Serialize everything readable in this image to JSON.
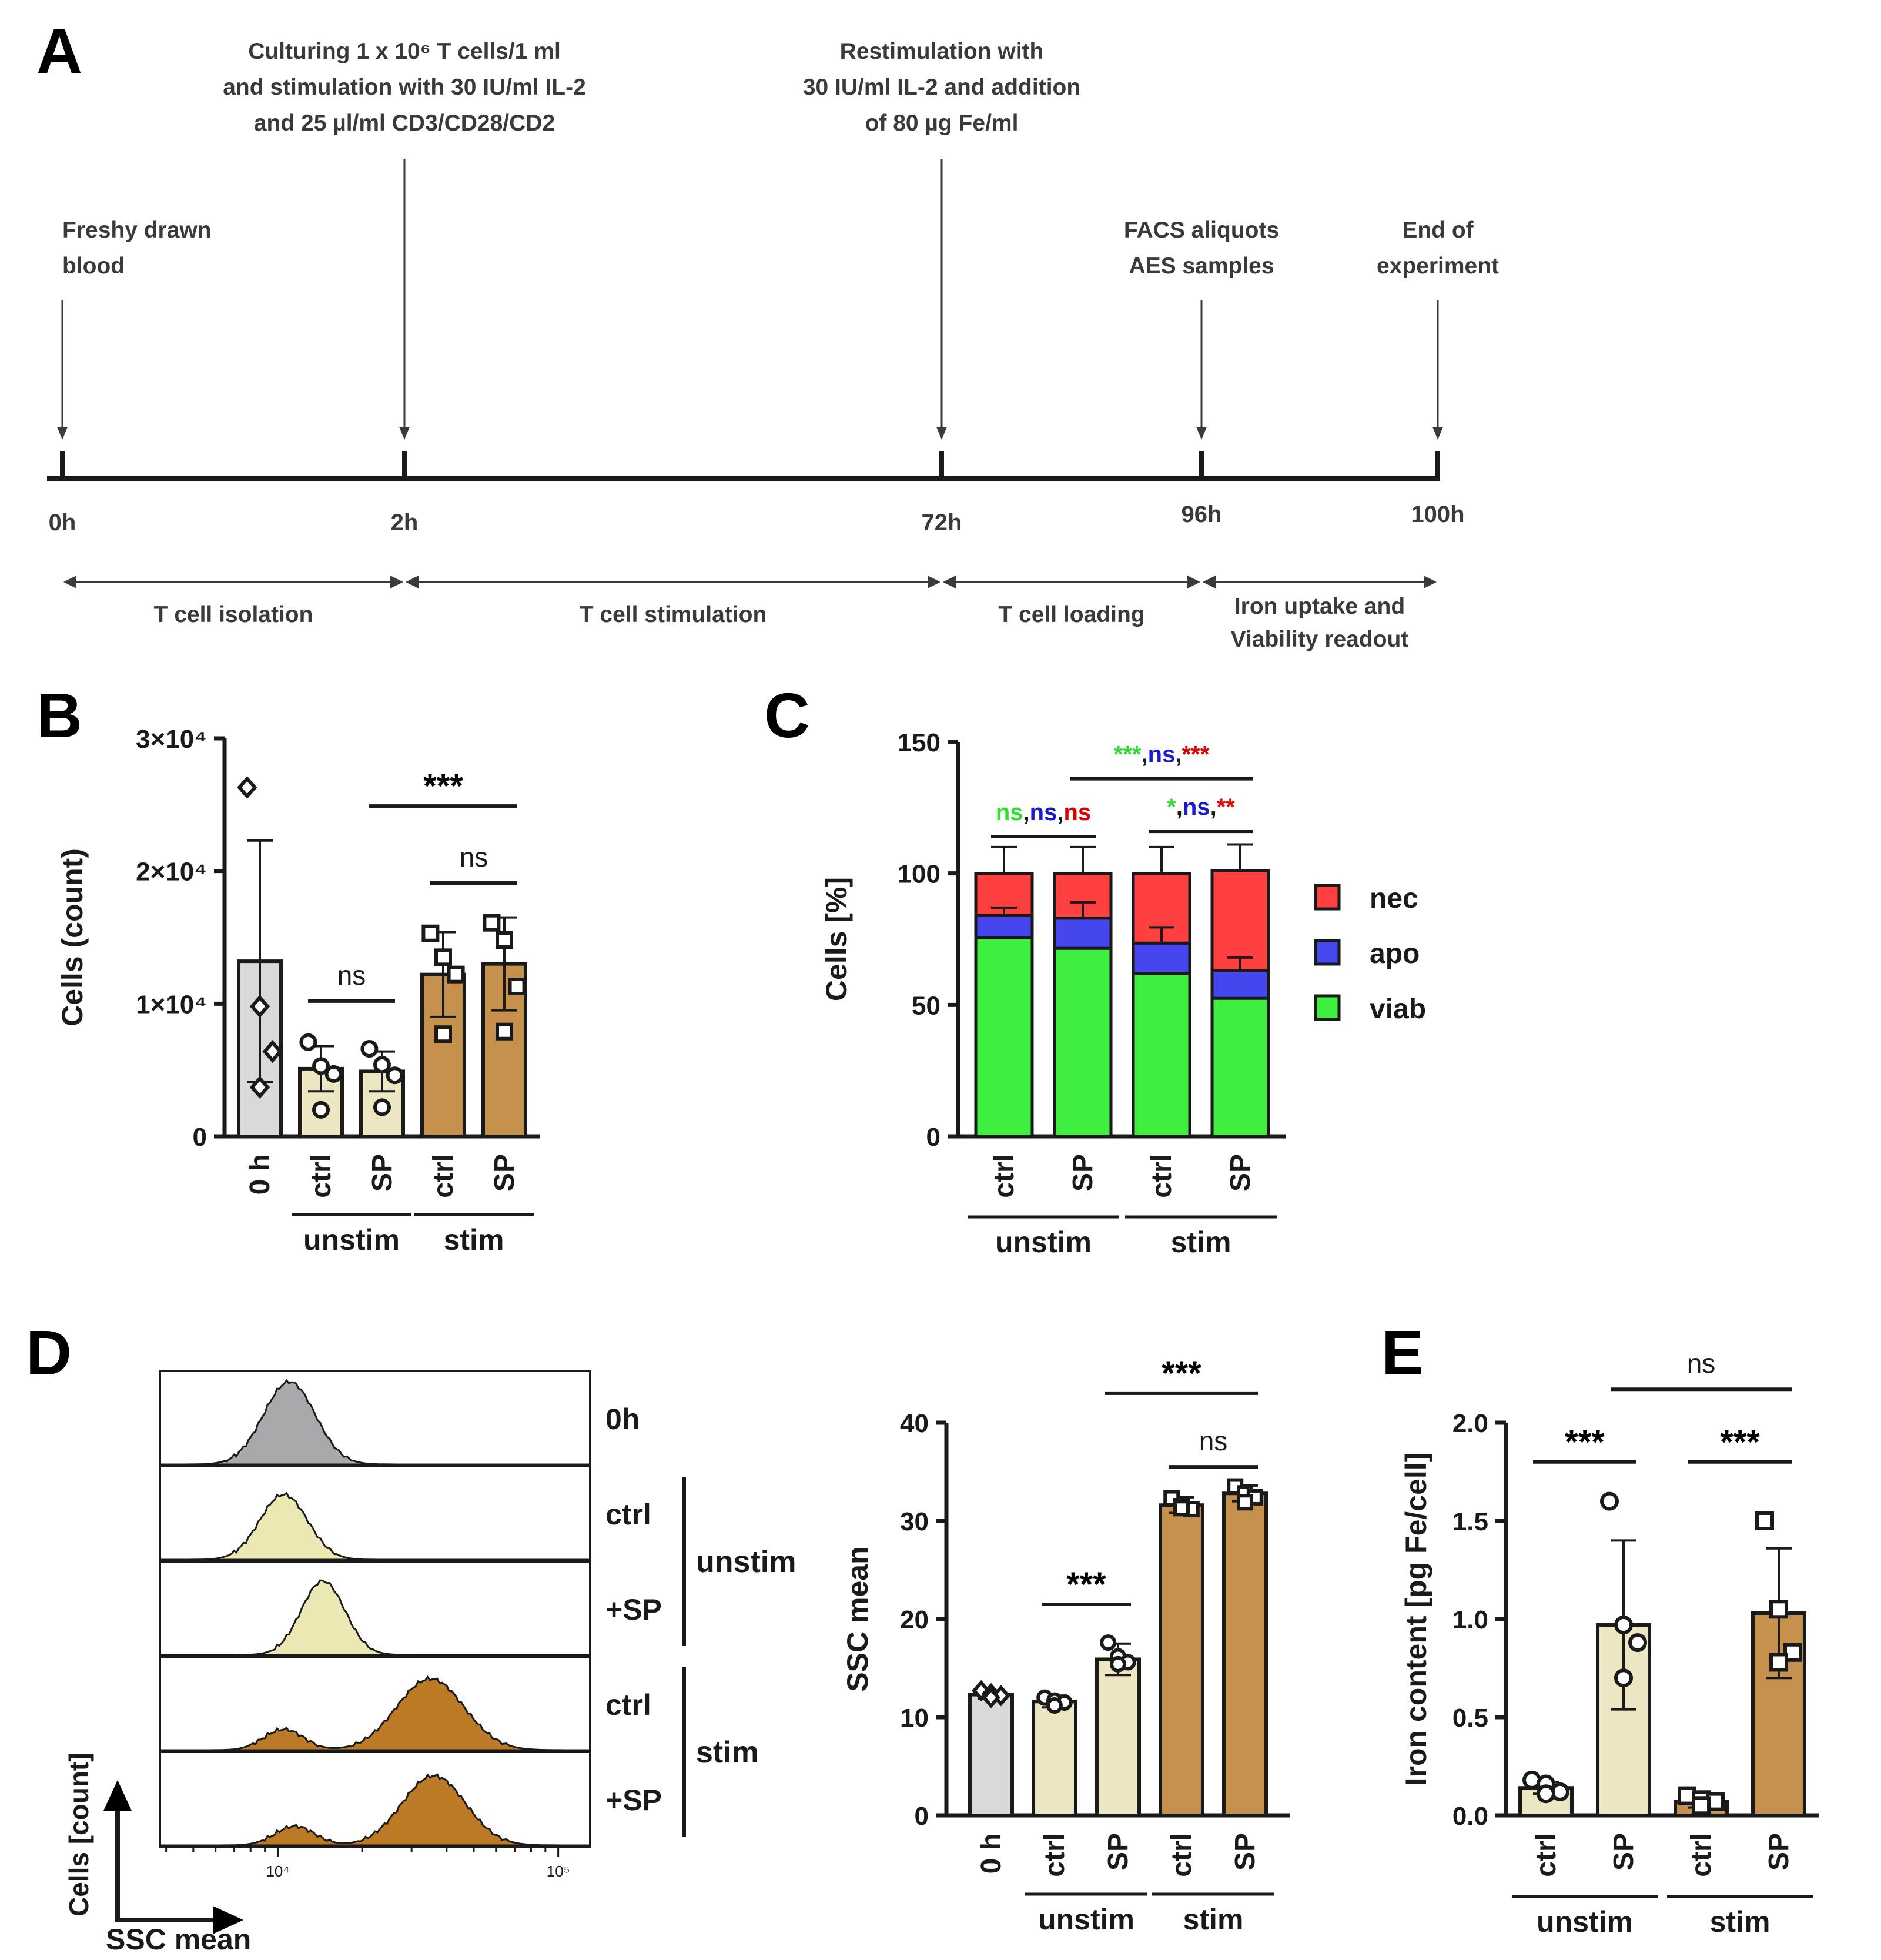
{
  "colors": {
    "axis": "#1a1a1a",
    "timeline_text": "#3a3a3a",
    "zero_h": "#d9d9d9",
    "unstim": "#ede6c3",
    "stim": "#c6914c",
    "hist_zero": "#a8a8ad",
    "hist_unstim": "#ebe8b4",
    "hist_stim": "#bd7a26",
    "nec": "#ff4040",
    "apo": "#4646ee",
    "viab": "#3fef3f",
    "sig_green": "#33dd33",
    "sig_blue": "#1a1acc",
    "sig_red": "#dd0000"
  },
  "panel_letters": [
    "A",
    "B",
    "C",
    "D",
    "E"
  ],
  "timeline": {
    "events": [
      {
        "lines": [
          "Freshy drawn",
          "blood"
        ],
        "align": "start"
      },
      {
        "lines": [
          "Culturing 1 x 10⁶ T cells/1 ml",
          "and stimulation with 30 IU/ml IL-2",
          "and 25 µl/ml CD3/CD28/CD2"
        ],
        "align": "middle"
      },
      {
        "lines": [
          "Restimulation with",
          "30 IU/ml IL-2 and addition",
          "of 80 µg Fe/ml"
        ],
        "align": "middle"
      },
      {
        "lines": [
          "FACS aliquots",
          "AES samples"
        ],
        "align": "middle"
      },
      {
        "lines": [
          "End of",
          "experiment"
        ],
        "align": "middle"
      }
    ],
    "ticks": [
      "0h",
      "2h",
      "72h",
      "96h",
      "100h"
    ],
    "phases": [
      {
        "lines": [
          "T cell isolation"
        ]
      },
      {
        "lines": [
          "T cell stimulation"
        ]
      },
      {
        "lines": [
          "T cell loading"
        ]
      },
      {
        "lines": [
          "Iron uptake and",
          "Viability readout"
        ]
      }
    ]
  },
  "chart_data": [
    {
      "panel": "B",
      "type": "bar",
      "ylabel": "Cells (count)",
      "ylim": [
        0,
        30000
      ],
      "yticks": [
        {
          "value": 0,
          "label": "0"
        },
        {
          "value": 10000,
          "label": "1×10⁴"
        },
        {
          "value": 20000,
          "label": "2×10⁴"
        },
        {
          "value": 30000,
          "label": "3×10⁴"
        }
      ],
      "categories": [
        "0 h",
        "ctrl",
        "SP",
        "ctrl",
        "SP"
      ],
      "groups": [
        {
          "label": "unstim",
          "from": 1,
          "to": 2
        },
        {
          "label": "stim",
          "from": 3,
          "to": 4
        }
      ],
      "values": [
        13200,
        5100,
        4900,
        12200,
        13000
      ],
      "errors": [
        9100,
        1700,
        1500,
        3200,
        3500
      ],
      "points": [
        [
          26300,
          9800,
          6400,
          3700
        ],
        [
          7100,
          5300,
          4700,
          2000
        ],
        [
          6600,
          5400,
          4600,
          2200
        ],
        [
          15300,
          13500,
          12200,
          7700
        ],
        [
          16100,
          14800,
          11300,
          7900
        ]
      ],
      "markers": [
        "diamond",
        "circle",
        "circle",
        "square",
        "square"
      ],
      "bar_colors": [
        "zero_h",
        "unstim",
        "unstim",
        "stim",
        "stim"
      ],
      "significance": [
        {
          "from": 1,
          "to": 2,
          "y": 10200,
          "label": "ns"
        },
        {
          "from": 3,
          "to": 4,
          "y": 19100,
          "label": "ns"
        },
        {
          "from": 2,
          "to": 4,
          "y": 24900,
          "label": "***"
        }
      ]
    },
    {
      "panel": "C",
      "type": "bar",
      "stacked": true,
      "ylabel": "Cells [%]",
      "ylim": [
        0,
        150
      ],
      "yticks": [
        {
          "value": 0,
          "label": "0"
        },
        {
          "value": 50,
          "label": "50"
        },
        {
          "value": 100,
          "label": "100"
        },
        {
          "value": 150,
          "label": "150"
        }
      ],
      "categories": [
        "ctrl",
        "SP",
        "ctrl",
        "SP"
      ],
      "groups": [
        {
          "label": "unstim",
          "from": 0,
          "to": 1
        },
        {
          "label": "stim",
          "from": 2,
          "to": 3
        }
      ],
      "series": [
        {
          "name": "viab",
          "values": [
            75.5,
            71.5,
            62,
            52.5
          ]
        },
        {
          "name": "apo",
          "values": [
            8.5,
            11.5,
            11.5,
            10.5
          ]
        },
        {
          "name": "nec",
          "values": [
            16,
            17,
            26.5,
            38
          ]
        }
      ],
      "errors": {
        "top": [
          10,
          10,
          10,
          10
        ],
        "viab_apo": [
          3,
          6,
          6,
          5
        ]
      },
      "legend": [
        "nec",
        "apo",
        "viab"
      ],
      "legend_position": "right",
      "significance": [
        {
          "from": 0,
          "to": 1,
          "y": 114,
          "parts": [
            {
              "text": "ns",
              "color": "sig_green"
            },
            {
              "text": ",",
              "color": "axis"
            },
            {
              "text": "ns",
              "color": "sig_blue"
            },
            {
              "text": ",",
              "color": "axis"
            },
            {
              "text": "ns",
              "color": "sig_red"
            }
          ]
        },
        {
          "from": 2,
          "to": 3,
          "y": 116,
          "parts": [
            {
              "text": "*",
              "color": "sig_green"
            },
            {
              "text": ",",
              "color": "axis"
            },
            {
              "text": "ns",
              "color": "sig_blue"
            },
            {
              "text": ",",
              "color": "axis"
            },
            {
              "text": "**",
              "color": "sig_red"
            }
          ]
        },
        {
          "from": 1,
          "to": 3,
          "y": 136,
          "parts": [
            {
              "text": "***",
              "color": "sig_green"
            },
            {
              "text": ",",
              "color": "axis"
            },
            {
              "text": "ns",
              "color": "sig_blue"
            },
            {
              "text": ",",
              "color": "axis"
            },
            {
              "text": "***",
              "color": "sig_red"
            }
          ]
        }
      ]
    },
    {
      "panel": "D",
      "type": "area",
      "xlabel": "SSC mean",
      "ylabel": "Cells [count]",
      "x_scale": "log",
      "xticks": [
        {
          "value": 10000,
          "label": "10⁴"
        },
        {
          "value": 100000,
          "label": "10⁵"
        }
      ],
      "rows": [
        {
          "label": "0h",
          "color": "hist_zero",
          "peaks": [
            {
              "x": 11000,
              "height": 0.95,
              "width": 0.13
            }
          ]
        },
        {
          "label": "ctrl",
          "color": "hist_unstim",
          "peaks": [
            {
              "x": 10500,
              "height": 0.75,
              "width": 0.12
            }
          ]
        },
        {
          "label": "+SP",
          "color": "hist_unstim",
          "peaks": [
            {
              "x": 14500,
              "height": 0.85,
              "width": 0.11
            }
          ]
        },
        {
          "label": "ctrl",
          "color": "hist_stim",
          "peaks": [
            {
              "x": 10500,
              "height": 0.24,
              "width": 0.1
            },
            {
              "x": 35000,
              "height": 0.82,
              "width": 0.17
            }
          ]
        },
        {
          "label": "+SP",
          "color": "hist_stim",
          "peaks": [
            {
              "x": 11500,
              "height": 0.22,
              "width": 0.1
            },
            {
              "x": 36000,
              "height": 0.8,
              "width": 0.16
            }
          ]
        }
      ],
      "groups": [
        {
          "label": "unstim",
          "rows": [
            1,
            2
          ]
        },
        {
          "label": "stim",
          "rows": [
            3,
            4
          ]
        }
      ]
    },
    {
      "panel": "D",
      "type": "bar",
      "ylabel": "SSC mean",
      "ylim": [
        0,
        40
      ],
      "yticks": [
        {
          "value": 0,
          "label": "0"
        },
        {
          "value": 10,
          "label": "10"
        },
        {
          "value": 20,
          "label": "20"
        },
        {
          "value": 30,
          "label": "30"
        },
        {
          "value": 40,
          "label": "40"
        }
      ],
      "categories": [
        "0 h",
        "ctrl",
        "SP",
        "ctrl",
        "SP"
      ],
      "groups": [
        {
          "label": "unstim",
          "from": 1,
          "to": 2
        },
        {
          "label": "stim",
          "from": 3,
          "to": 4
        }
      ],
      "values": [
        12.3,
        11.6,
        15.9,
        31.6,
        32.8
      ],
      "errors": [
        0.4,
        0.6,
        1.6,
        0.8,
        0.8
      ],
      "points": [
        [
          12.7,
          12.4,
          12.2,
          12.0
        ],
        [
          12.0,
          11.7,
          11.5,
          11.2
        ],
        [
          17.6,
          16.2,
          15.6,
          15.4
        ],
        [
          32.3,
          31.5,
          31.2,
          31.3
        ],
        [
          33.5,
          32.8,
          32.4,
          31.9
        ]
      ],
      "markers": [
        "diamond",
        "circle",
        "circle",
        "square",
        "square"
      ],
      "bar_colors": [
        "zero_h",
        "unstim",
        "unstim",
        "stim",
        "stim"
      ],
      "significance": [
        {
          "from": 1,
          "to": 2,
          "y": 21.5,
          "label": "***"
        },
        {
          "from": 3,
          "to": 4,
          "y": 35.5,
          "label": "ns"
        },
        {
          "from": 2,
          "to": 4,
          "y": 43,
          "label": "***"
        }
      ]
    },
    {
      "panel": "E",
      "type": "bar",
      "ylabel": "Iron content [pg Fe/cell]",
      "ylim": [
        0,
        2.0
      ],
      "yticks": [
        {
          "value": 0,
          "label": "0.0"
        },
        {
          "value": 0.5,
          "label": "0.5"
        },
        {
          "value": 1.0,
          "label": "1.0"
        },
        {
          "value": 1.5,
          "label": "1.5"
        },
        {
          "value": 2.0,
          "label": "2.0"
        }
      ],
      "categories": [
        "ctrl",
        "SP",
        "ctrl",
        "SP"
      ],
      "groups": [
        {
          "label": "unstim",
          "from": 0,
          "to": 1
        },
        {
          "label": "stim",
          "from": 2,
          "to": 3
        }
      ],
      "values": [
        0.14,
        0.97,
        0.07,
        1.03
      ],
      "errors": [
        0.03,
        0.43,
        0.03,
        0.33
      ],
      "points": [
        [
          0.18,
          0.16,
          0.12,
          0.11
        ],
        [
          1.6,
          0.97,
          0.88,
          0.7
        ],
        [
          0.1,
          0.08,
          0.07,
          0.05
        ],
        [
          1.5,
          1.05,
          0.83,
          0.78
        ]
      ],
      "markers": [
        "circle",
        "circle",
        "square",
        "square"
      ],
      "bar_colors": [
        "unstim",
        "unstim",
        "stim",
        "stim"
      ],
      "significance": [
        {
          "from": 0,
          "to": 1,
          "y": 1.8,
          "label": "***"
        },
        {
          "from": 2,
          "to": 3,
          "y": 1.8,
          "label": "***"
        },
        {
          "from": 1,
          "to": 3,
          "y": 2.17,
          "label": "ns"
        }
      ]
    }
  ]
}
